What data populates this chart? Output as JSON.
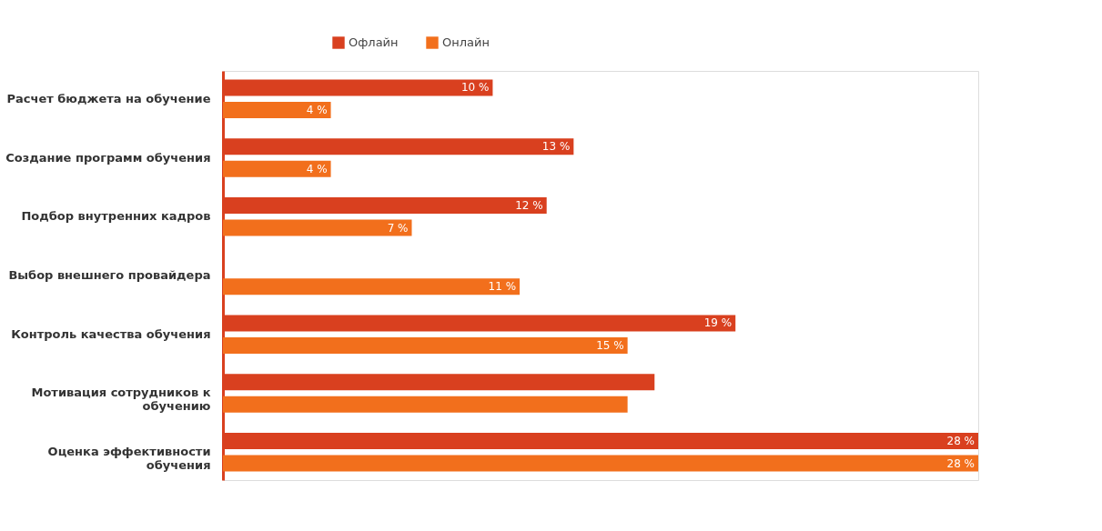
{
  "chart_data": {
    "type": "bar",
    "orientation": "horizontal",
    "legend": "top",
    "tick_labels": "y",
    "xlim": [
      0,
      28
    ],
    "categories": [
      "Расчет бюджета на обучение",
      "Создание программ обучения",
      "Подбор внутренних кадров",
      "Выбор внешнего провайдера",
      "Контроль качества обучения",
      "Мотивация сотрудников к обучению",
      "Оценка эффективности обучения"
    ],
    "series": [
      {
        "name": "Офлайн",
        "color": "#d9401f",
        "values": [
          10,
          13,
          12,
          null,
          19,
          16,
          28
        ],
        "value_labels": [
          "10 %",
          "13 %",
          "12 %",
          null,
          "19 %",
          null,
          "28 %"
        ]
      },
      {
        "name": "Онлайн",
        "color": "#f26f1c",
        "values": [
          4,
          4,
          7,
          11,
          15,
          15,
          28
        ],
        "value_labels": [
          "4 %",
          "4 %",
          "7 %",
          "11 %",
          "15 %",
          null,
          "28 %"
        ]
      }
    ]
  }
}
